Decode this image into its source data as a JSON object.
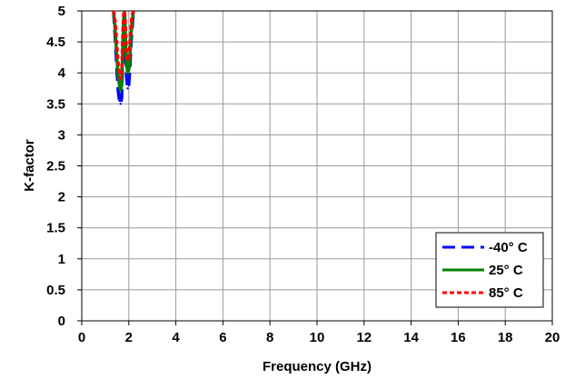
{
  "chart_data": {
    "type": "line",
    "title": "",
    "xlabel": "Frequency (GHz)",
    "ylabel": "K-factor",
    "xlim": [
      0,
      20
    ],
    "ylim": [
      0,
      5
    ],
    "xticks": [
      "0",
      "2",
      "4",
      "6",
      "8",
      "10",
      "12",
      "14",
      "16",
      "18",
      "20"
    ],
    "yticks": [
      "0",
      "0.5",
      "1",
      "1.5",
      "2",
      "2.5",
      "3",
      "3.5",
      "4",
      "4.5",
      "5"
    ],
    "grid": true,
    "legend_position": "bottom-right",
    "series": [
      {
        "name": "-40° C",
        "color": "#0000ff",
        "style": "dashed",
        "x": [
          1.35,
          1.4,
          1.45,
          1.5,
          1.55,
          1.6,
          1.65,
          1.7,
          1.72,
          1.75,
          1.78,
          1.82,
          1.86,
          1.9,
          1.95,
          2.0,
          2.05,
          2.1,
          2.15,
          2.2
        ],
        "y": [
          5.0,
          4.7,
          4.35,
          4.0,
          3.7,
          3.55,
          3.5,
          3.6,
          3.9,
          4.3,
          4.7,
          5.0,
          4.4,
          3.95,
          3.75,
          3.8,
          4.1,
          4.5,
          4.75,
          5.0
        ]
      },
      {
        "name": "25° C",
        "color": "#008000",
        "style": "solid",
        "x": [
          1.35,
          1.4,
          1.45,
          1.5,
          1.55,
          1.6,
          1.65,
          1.7,
          1.72,
          1.75,
          1.78,
          1.82,
          1.86,
          1.9,
          1.95,
          2.0,
          2.05,
          2.1,
          2.15,
          2.2
        ],
        "y": [
          5.0,
          4.8,
          4.5,
          4.2,
          3.95,
          3.8,
          3.72,
          3.8,
          4.1,
          4.5,
          4.85,
          5.0,
          4.55,
          4.15,
          4.0,
          4.05,
          4.3,
          4.65,
          4.85,
          5.0
        ]
      },
      {
        "name": "85° C",
        "color": "#ff0000",
        "style": "dotted",
        "x": [
          1.35,
          1.4,
          1.45,
          1.5,
          1.55,
          1.6,
          1.65,
          1.7,
          1.72,
          1.75,
          1.78,
          1.82,
          1.86,
          1.9,
          1.95,
          2.0,
          2.05,
          2.1,
          2.15,
          2.2
        ],
        "y": [
          5.0,
          4.9,
          4.7,
          4.4,
          4.15,
          4.0,
          3.9,
          4.0,
          4.3,
          4.7,
          4.95,
          5.0,
          4.75,
          4.35,
          4.2,
          4.25,
          4.5,
          4.8,
          4.95,
          5.0
        ]
      }
    ]
  }
}
